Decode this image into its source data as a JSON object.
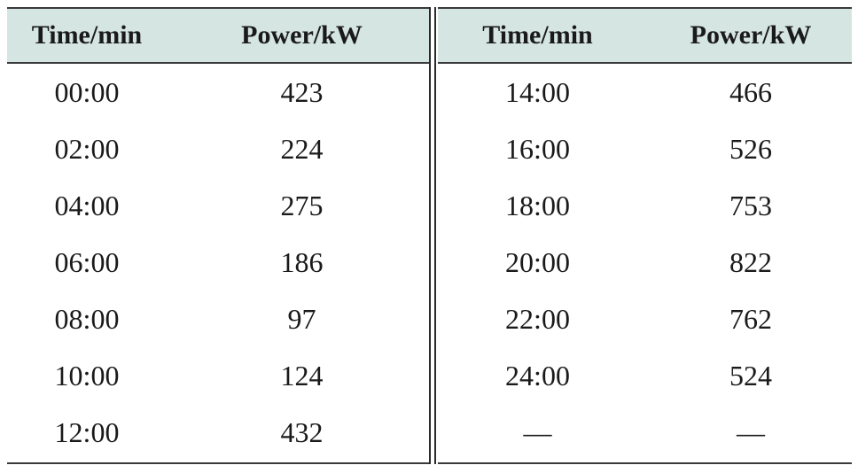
{
  "headers": {
    "time": "Time/min",
    "power": "Power/kW"
  },
  "left_rows": [
    {
      "time": "00:00",
      "power": "423"
    },
    {
      "time": "02:00",
      "power": "224"
    },
    {
      "time": "04:00",
      "power": "275"
    },
    {
      "time": "06:00",
      "power": "186"
    },
    {
      "time": "08:00",
      "power": "97"
    },
    {
      "time": "10:00",
      "power": "124"
    },
    {
      "time": "12:00",
      "power": "432"
    }
  ],
  "right_rows": [
    {
      "time": "14:00",
      "power": "466"
    },
    {
      "time": "16:00",
      "power": "526"
    },
    {
      "time": "18:00",
      "power": "753"
    },
    {
      "time": "20:00",
      "power": "822"
    },
    {
      "time": "22:00",
      "power": "762"
    },
    {
      "time": "24:00",
      "power": "524"
    },
    {
      "time": "—",
      "power": "—"
    }
  ],
  "colors": {
    "header_background": "#d5e5e2",
    "rule": "#3a3a3a"
  }
}
